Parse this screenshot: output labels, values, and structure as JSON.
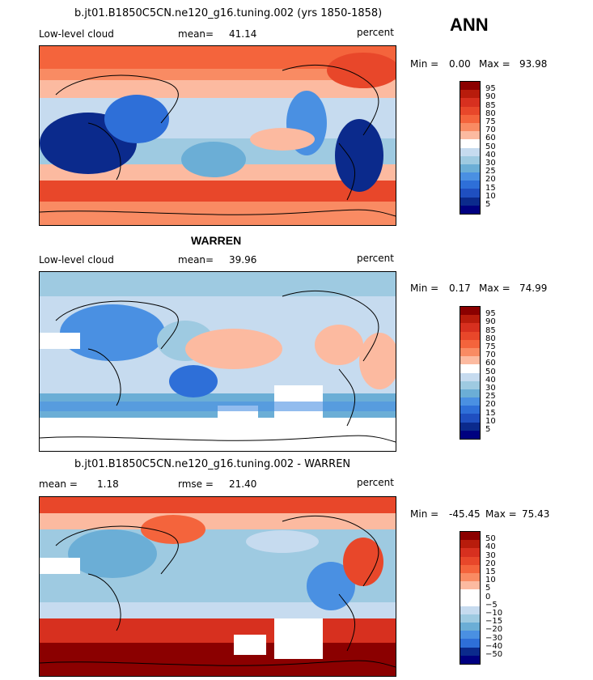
{
  "header": {
    "title": "b.jt01.B1850C5CN.ne120_g16.tuning.002 (yrs 1850-1858)",
    "season": "ANN"
  },
  "panels": [
    {
      "variable": "Low-level cloud",
      "mean_label": "mean=",
      "mean_value": "41.14",
      "units": "percent",
      "min_label": "Min =",
      "min_value": "0.00",
      "max_label": "Max =",
      "max_value": "93.98",
      "levels": [
        "95",
        "90",
        "85",
        "80",
        "75",
        "70",
        "60",
        "50",
        "40",
        "30",
        "25",
        "20",
        "15",
        "10",
        "5"
      ],
      "colors": [
        "#8b0000",
        "#b81c0c",
        "#d7301f",
        "#e8472a",
        "#f4643c",
        "#f98b63",
        "#fcbaa0",
        "#ffffff",
        "#c6dbef",
        "#9ecae1",
        "#6baed6",
        "#4a90e2",
        "#2e6fd8",
        "#1f4fc0",
        "#0b2a8c",
        "#000080"
      ]
    },
    {
      "title": "WARREN",
      "variable": "Low-level cloud",
      "mean_label": "mean=",
      "mean_value": "39.96",
      "units": "percent",
      "min_label": "Min =",
      "min_value": "0.17",
      "max_label": "Max =",
      "max_value": "74.99",
      "levels": [
        "95",
        "90",
        "85",
        "80",
        "75",
        "70",
        "60",
        "50",
        "40",
        "30",
        "25",
        "20",
        "15",
        "10",
        "5"
      ],
      "colors": [
        "#8b0000",
        "#b81c0c",
        "#d7301f",
        "#e8472a",
        "#f4643c",
        "#f98b63",
        "#fcbaa0",
        "#ffffff",
        "#c6dbef",
        "#9ecae1",
        "#6baed6",
        "#4a90e2",
        "#2e6fd8",
        "#1f4fc0",
        "#0b2a8c",
        "#000080"
      ]
    },
    {
      "title": "b.jt01.B1850C5CN.ne120_g16.tuning.002 - WARREN",
      "mean_label": "mean =",
      "mean_value": "1.18",
      "rmse_label": "rmse =",
      "rmse_value": "21.40",
      "units": "percent",
      "min_label": "Min =",
      "min_value": "-45.45",
      "max_label": "Max =",
      "max_value": "75.43",
      "levels": [
        "50",
        "40",
        "30",
        "20",
        "15",
        "10",
        "5",
        "0",
        "−5",
        "−10",
        "−15",
        "−20",
        "−30",
        "−40",
        "−50"
      ],
      "colors": [
        "#8b0000",
        "#b81c0c",
        "#d7301f",
        "#e8472a",
        "#f4643c",
        "#f98b63",
        "#fcbaa0",
        "#ffffff",
        "#ffffff",
        "#c6dbef",
        "#9ecae1",
        "#6baed6",
        "#4a90e2",
        "#2e6fd8",
        "#0b2a8c",
        "#000080"
      ]
    }
  ]
}
